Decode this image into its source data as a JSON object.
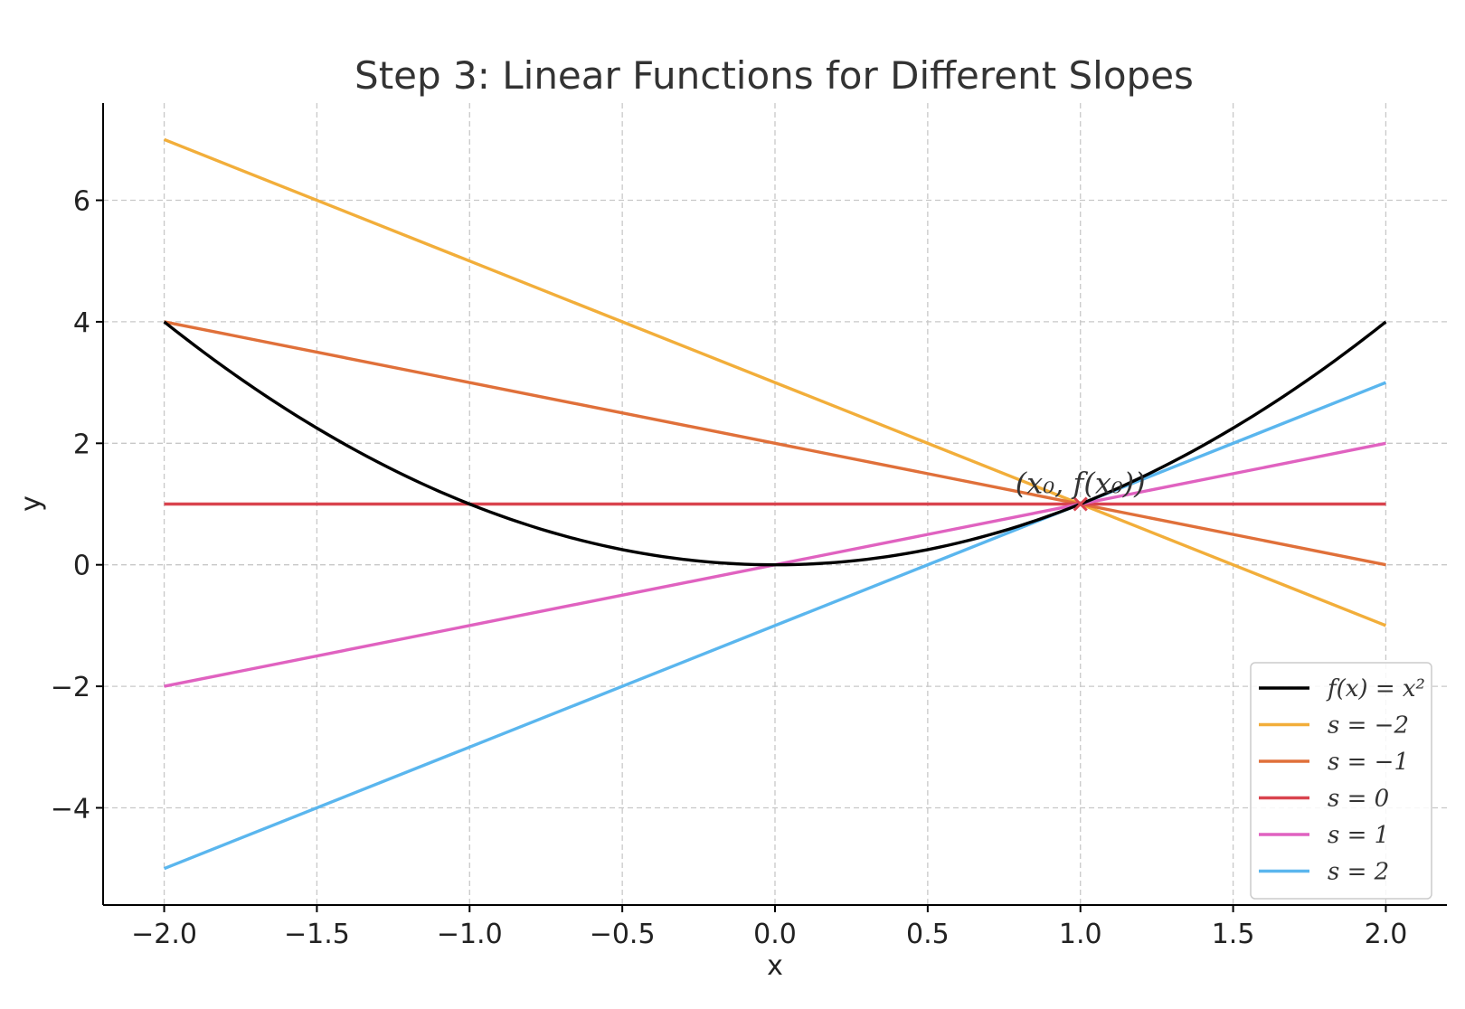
{
  "chart_data": {
    "type": "line",
    "title": "Step 3: Linear Functions for Different Slopes",
    "xlabel": "x",
    "ylabel": "y",
    "xlim": [
      -2.2,
      2.2
    ],
    "ylim": [
      -5.6,
      7.6
    ],
    "x_ticks": [
      -2.0,
      -1.5,
      -1.0,
      -0.5,
      0.0,
      0.5,
      1.0,
      1.5,
      2.0
    ],
    "x_tick_labels": [
      "−2.0",
      "−1.5",
      "−1.0",
      "−0.5",
      "0.0",
      "0.5",
      "1.0",
      "1.5",
      "2.0"
    ],
    "y_ticks": [
      -4,
      -2,
      0,
      2,
      4,
      6
    ],
    "y_tick_labels": [
      "−4",
      "−2",
      "0",
      "2",
      "4",
      "6"
    ],
    "grid": true,
    "legend_position": "lower-right",
    "series": [
      {
        "name": "f(x) = x²",
        "kind": "curve",
        "color": "#000000",
        "x": [
          -2,
          -1.5,
          -1,
          -0.5,
          0,
          0.5,
          1,
          1.5,
          2
        ],
        "y": [
          4,
          2.25,
          1,
          0.25,
          0,
          0.25,
          1,
          2.25,
          4
        ]
      },
      {
        "name": "s = −2",
        "kind": "line",
        "color": "#F2AE3A",
        "x": [
          -2,
          2
        ],
        "y": [
          7,
          -1
        ]
      },
      {
        "name": "s = −1",
        "kind": "line",
        "color": "#E0703A",
        "x": [
          -2,
          2
        ],
        "y": [
          4,
          0
        ]
      },
      {
        "name": "s = 0",
        "kind": "line",
        "color": "#D9434E",
        "x": [
          -2,
          2
        ],
        "y": [
          1,
          1
        ]
      },
      {
        "name": "s = 1",
        "kind": "line",
        "color": "#E062C0",
        "x": [
          -2,
          2
        ],
        "y": [
          -2,
          2
        ]
      },
      {
        "name": "s = 2",
        "kind": "line",
        "color": "#5AB6EE",
        "x": [
          -2,
          2
        ],
        "y": [
          -5,
          3
        ]
      }
    ],
    "point": {
      "x": 1,
      "y": 1,
      "marker": "x",
      "color": "#D9434E"
    },
    "annotation": {
      "text": "(x₀, f(x₀))",
      "x": 1,
      "y": 1
    }
  }
}
